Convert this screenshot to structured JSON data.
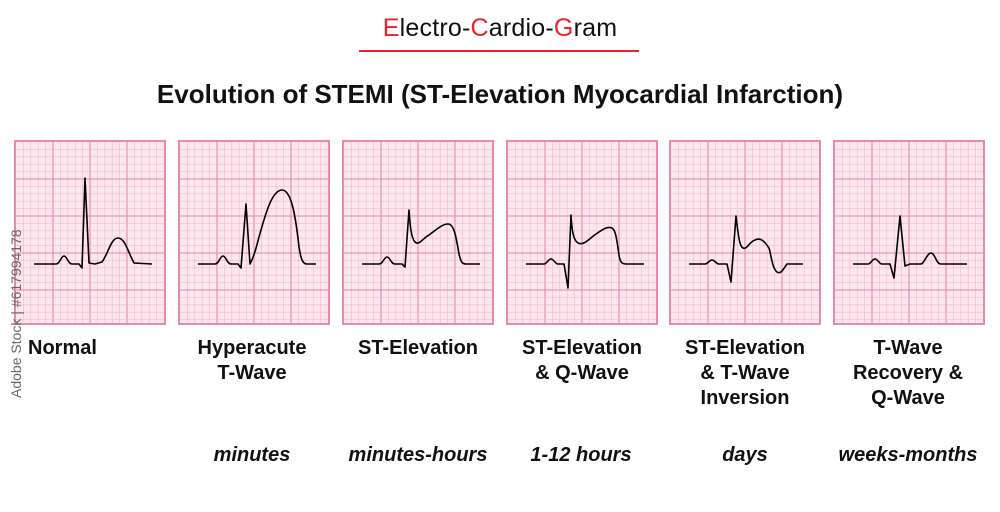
{
  "header": {
    "brand_parts": [
      {
        "text": "E",
        "highlight": true
      },
      {
        "text": "lectro-",
        "highlight": false
      },
      {
        "text": "C",
        "highlight": true
      },
      {
        "text": "ardio-",
        "highlight": false
      },
      {
        "text": "G",
        "highlight": true
      },
      {
        "text": "ram",
        "highlight": false
      }
    ],
    "title": "Evolution of STEMI (ST-Elevation Myocardial Infarction)"
  },
  "colors": {
    "accent": "#e8232a",
    "grid_fine": "#f4b8ca",
    "grid_major": "#e985a6",
    "paper": "#fde7ee",
    "trace": "#000000"
  },
  "stages": [
    {
      "id": "normal",
      "label_lines": [
        "Normal"
      ],
      "timing": "",
      "trace": "normal"
    },
    {
      "id": "hyperacute",
      "label_lines": [
        "Hyperacute",
        "T-Wave"
      ],
      "timing": "minutes",
      "trace": "hyperacute"
    },
    {
      "id": "st-elevation",
      "label_lines": [
        "ST-Elevation"
      ],
      "timing": "minutes-hours",
      "trace": "st_elevation"
    },
    {
      "id": "st-q",
      "label_lines": [
        "ST-Elevation",
        "& Q-Wave"
      ],
      "timing": "1-12 hours",
      "trace": "st_q"
    },
    {
      "id": "st-t-inv",
      "label_lines": [
        "ST-Elevation",
        "& T-Wave",
        "Inversion"
      ],
      "timing": "days",
      "trace": "st_t_inversion"
    },
    {
      "id": "recovery",
      "label_lines": [
        "T-Wave",
        "Recovery &",
        "Q-Wave"
      ],
      "timing": "weeks-months",
      "trace": "recovery"
    }
  ],
  "watermark": "Adobe Stock | #617994178"
}
